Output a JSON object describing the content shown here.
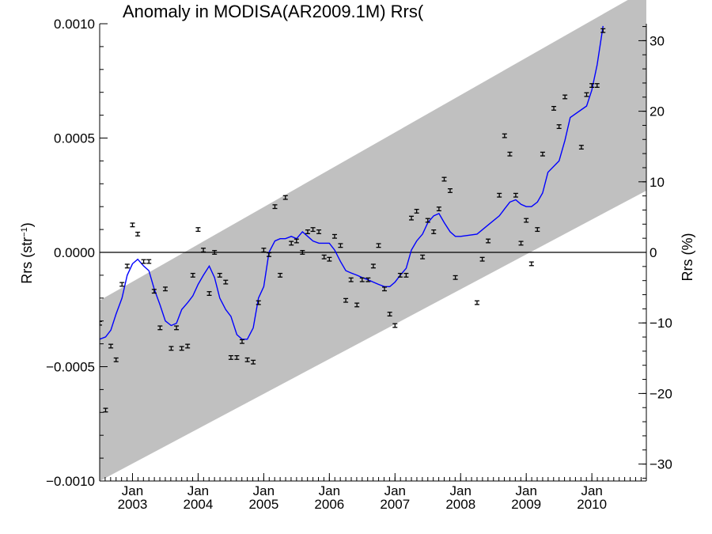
{
  "chart_data": {
    "type": "scatter",
    "title": "Anomaly in MODISA(AR2009.1M) Rrs(",
    "ylabel_left": "Rrs (str",
    "ylabel_left_sup": "−1",
    "ylabel_left_close": ")",
    "ylabel_right": "Rrs (%)",
    "xlim": [
      2002.5,
      2010.83
    ],
    "ylim": [
      -0.001,
      0.001
    ],
    "y2lim": [
      -32.4,
      32.4
    ],
    "y_ticks": [
      {
        "value": -0.001,
        "label": "−0.0010"
      },
      {
        "value": -0.0005,
        "label": "−0.0005"
      },
      {
        "value": 0.0,
        "label": "0.0000"
      },
      {
        "value": 0.0005,
        "label": "0.0005"
      },
      {
        "value": 0.001,
        "label": "0.0010"
      }
    ],
    "y2_ticks": [
      {
        "value": -30,
        "label": "−30"
      },
      {
        "value": -20,
        "label": "−20"
      },
      {
        "value": -10,
        "label": "−10"
      },
      {
        "value": 0,
        "label": "0"
      },
      {
        "value": 10,
        "label": "10"
      },
      {
        "value": 20,
        "label": "20"
      },
      {
        "value": 30,
        "label": "30"
      }
    ],
    "x_ticks": [
      {
        "value": 2003,
        "month": "Jan",
        "year": "2003"
      },
      {
        "value": 2004,
        "month": "Jan",
        "year": "2004"
      },
      {
        "value": 2005,
        "month": "Jan",
        "year": "2005"
      },
      {
        "value": 2006,
        "month": "Jan",
        "year": "2006"
      },
      {
        "value": 2007,
        "month": "Jan",
        "year": "2007"
      },
      {
        "value": 2008,
        "month": "Jan",
        "year": "2008"
      },
      {
        "value": 2009,
        "month": "Jan",
        "year": "2009"
      },
      {
        "value": 2010,
        "month": "Jan",
        "year": "2010"
      }
    ],
    "band": {
      "color": "#c0c0c0",
      "lower_start": -0.001,
      "lower_end": 0.00027,
      "upper_start": -0.00021,
      "upper_end": 0.00115
    },
    "zero_line": true,
    "series": [
      {
        "kind": "points_with_errorbars",
        "color": "#000000",
        "error": 8e-06,
        "points": [
          [
            2002.5,
            -0.00031
          ],
          [
            2002.59,
            -0.00069
          ],
          [
            2002.67,
            -0.00041
          ],
          [
            2002.75,
            -0.00047
          ],
          [
            2002.84,
            -0.00014
          ],
          [
            2002.92,
            -6e-05
          ],
          [
            2003.0,
            0.00012
          ],
          [
            2003.08,
            8e-05
          ],
          [
            2003.17,
            -4e-05
          ],
          [
            2003.25,
            -4e-05
          ],
          [
            2003.33,
            -0.00017
          ],
          [
            2003.42,
            -0.00033
          ],
          [
            2003.5,
            -0.00016
          ],
          [
            2003.59,
            -0.00042
          ],
          [
            2003.67,
            -0.00033
          ],
          [
            2003.75,
            -0.00042
          ],
          [
            2003.84,
            -0.00041
          ],
          [
            2003.92,
            -0.0001
          ],
          [
            2004.0,
            0.0001
          ],
          [
            2004.08,
            1e-05
          ],
          [
            2004.17,
            -0.00018
          ],
          [
            2004.25,
            0.0
          ],
          [
            2004.33,
            -0.0001
          ],
          [
            2004.42,
            -0.00013
          ],
          [
            2004.5,
            -0.00046
          ],
          [
            2004.59,
            -0.00046
          ],
          [
            2004.67,
            -0.00039
          ],
          [
            2004.75,
            -0.00047
          ],
          [
            2004.84,
            -0.00048
          ],
          [
            2004.92,
            -0.00022
          ],
          [
            2005.0,
            1e-05
          ],
          [
            2005.08,
            -1e-05
          ],
          [
            2005.17,
            0.0002
          ],
          [
            2005.25,
            -0.0001
          ],
          [
            2005.33,
            0.00024
          ],
          [
            2005.42,
            4e-05
          ],
          [
            2005.5,
            5e-05
          ],
          [
            2005.59,
            0.0
          ],
          [
            2005.67,
            9e-05
          ],
          [
            2005.75,
            0.0001
          ],
          [
            2005.84,
            9e-05
          ],
          [
            2005.92,
            -2e-05
          ],
          [
            2006.0,
            -3e-05
          ],
          [
            2006.08,
            7e-05
          ],
          [
            2006.17,
            3e-05
          ],
          [
            2006.25,
            -0.00021
          ],
          [
            2006.33,
            -0.00012
          ],
          [
            2006.42,
            -0.00023
          ],
          [
            2006.5,
            -0.00012
          ],
          [
            2006.59,
            -0.00012
          ],
          [
            2006.67,
            -6e-05
          ],
          [
            2006.75,
            3e-05
          ],
          [
            2006.84,
            -0.00016
          ],
          [
            2006.92,
            -0.00027
          ],
          [
            2007.0,
            -0.00032
          ],
          [
            2007.08,
            -0.0001
          ],
          [
            2007.17,
            -0.0001
          ],
          [
            2007.25,
            0.00015
          ],
          [
            2007.33,
            0.00018
          ],
          [
            2007.42,
            -2e-05
          ],
          [
            2007.5,
            0.00014
          ],
          [
            2007.59,
            9e-05
          ],
          [
            2007.67,
            0.00019
          ],
          [
            2007.75,
            0.00032
          ],
          [
            2007.84,
            0.00027
          ],
          [
            2007.92,
            -0.00011
          ],
          [
            2008.25,
            -0.00022
          ],
          [
            2008.33,
            -3e-05
          ],
          [
            2008.42,
            5e-05
          ],
          [
            2008.59,
            0.00025
          ],
          [
            2008.67,
            0.00051
          ],
          [
            2008.75,
            0.00043
          ],
          [
            2008.84,
            0.00025
          ],
          [
            2008.92,
            4e-05
          ],
          [
            2009.0,
            0.00014
          ],
          [
            2009.08,
            -5e-05
          ],
          [
            2009.17,
            0.0001
          ],
          [
            2009.25,
            0.00043
          ],
          [
            2009.42,
            0.00063
          ],
          [
            2009.5,
            0.00055
          ],
          [
            2009.59,
            0.00068
          ],
          [
            2009.84,
            0.00046
          ],
          [
            2009.92,
            0.00069
          ],
          [
            2010.0,
            0.00073
          ],
          [
            2010.08,
            0.00073
          ],
          [
            2010.17,
            0.00097
          ]
        ]
      },
      {
        "kind": "line",
        "color": "#0000ff",
        "points": [
          [
            2002.5,
            -0.00038
          ],
          [
            2002.59,
            -0.00037
          ],
          [
            2002.67,
            -0.00034
          ],
          [
            2002.75,
            -0.00027
          ],
          [
            2002.84,
            -0.0002
          ],
          [
            2002.92,
            -0.0001
          ],
          [
            2003.0,
            -5e-05
          ],
          [
            2003.08,
            -3e-05
          ],
          [
            2003.17,
            -6e-05
          ],
          [
            2003.25,
            -8e-05
          ],
          [
            2003.33,
            -0.00016
          ],
          [
            2003.42,
            -0.00023
          ],
          [
            2003.5,
            -0.0003
          ],
          [
            2003.59,
            -0.00032
          ],
          [
            2003.67,
            -0.00031
          ],
          [
            2003.75,
            -0.00025
          ],
          [
            2003.84,
            -0.00022
          ],
          [
            2003.92,
            -0.00019
          ],
          [
            2004.0,
            -0.00014
          ],
          [
            2004.08,
            -0.0001
          ],
          [
            2004.17,
            -6e-05
          ],
          [
            2004.25,
            -0.00011
          ],
          [
            2004.33,
            -0.0002
          ],
          [
            2004.42,
            -0.00025
          ],
          [
            2004.5,
            -0.00028
          ],
          [
            2004.59,
            -0.00036
          ],
          [
            2004.67,
            -0.00038
          ],
          [
            2004.75,
            -0.00038
          ],
          [
            2004.84,
            -0.00033
          ],
          [
            2004.92,
            -0.0002
          ],
          [
            2005.0,
            -0.00015
          ],
          [
            2005.08,
            0.0
          ],
          [
            2005.17,
            5e-05
          ],
          [
            2005.25,
            6e-05
          ],
          [
            2005.33,
            6e-05
          ],
          [
            2005.42,
            7e-05
          ],
          [
            2005.5,
            6e-05
          ],
          [
            2005.59,
            9e-05
          ],
          [
            2005.67,
            7e-05
          ],
          [
            2005.75,
            5e-05
          ],
          [
            2005.84,
            4e-05
          ],
          [
            2005.92,
            4e-05
          ],
          [
            2006.0,
            4e-05
          ],
          [
            2006.08,
            1e-05
          ],
          [
            2006.17,
            -4e-05
          ],
          [
            2006.25,
            -8e-05
          ],
          [
            2006.33,
            -9e-05
          ],
          [
            2006.42,
            -0.0001
          ],
          [
            2006.5,
            -0.00011
          ],
          [
            2006.59,
            -0.00012
          ],
          [
            2006.67,
            -0.00013
          ],
          [
            2006.75,
            -0.00014
          ],
          [
            2006.84,
            -0.00015
          ],
          [
            2006.92,
            -0.00015
          ],
          [
            2007.0,
            -0.00013
          ],
          [
            2007.08,
            -0.0001
          ],
          [
            2007.17,
            -7e-05
          ],
          [
            2007.25,
            1e-05
          ],
          [
            2007.33,
            5e-05
          ],
          [
            2007.42,
            8e-05
          ],
          [
            2007.5,
            0.00013
          ],
          [
            2007.59,
            0.00016
          ],
          [
            2007.67,
            0.00017
          ],
          [
            2007.75,
            0.00013
          ],
          [
            2007.84,
            9e-05
          ],
          [
            2007.92,
            7e-05
          ],
          [
            2008.0,
            7e-05
          ],
          [
            2008.25,
            8e-05
          ],
          [
            2008.42,
            0.00012
          ],
          [
            2008.59,
            0.00016
          ],
          [
            2008.67,
            0.00019
          ],
          [
            2008.75,
            0.00022
          ],
          [
            2008.84,
            0.00023
          ],
          [
            2008.92,
            0.00021
          ],
          [
            2009.0,
            0.0002
          ],
          [
            2009.08,
            0.0002
          ],
          [
            2009.17,
            0.00022
          ],
          [
            2009.25,
            0.00026
          ],
          [
            2009.33,
            0.00035
          ],
          [
            2009.5,
            0.0004
          ],
          [
            2009.59,
            0.00049
          ],
          [
            2009.67,
            0.00059
          ],
          [
            2009.92,
            0.00064
          ],
          [
            2010.0,
            0.00071
          ],
          [
            2010.08,
            0.00082
          ],
          [
            2010.17,
            0.00099
          ]
        ]
      }
    ]
  }
}
